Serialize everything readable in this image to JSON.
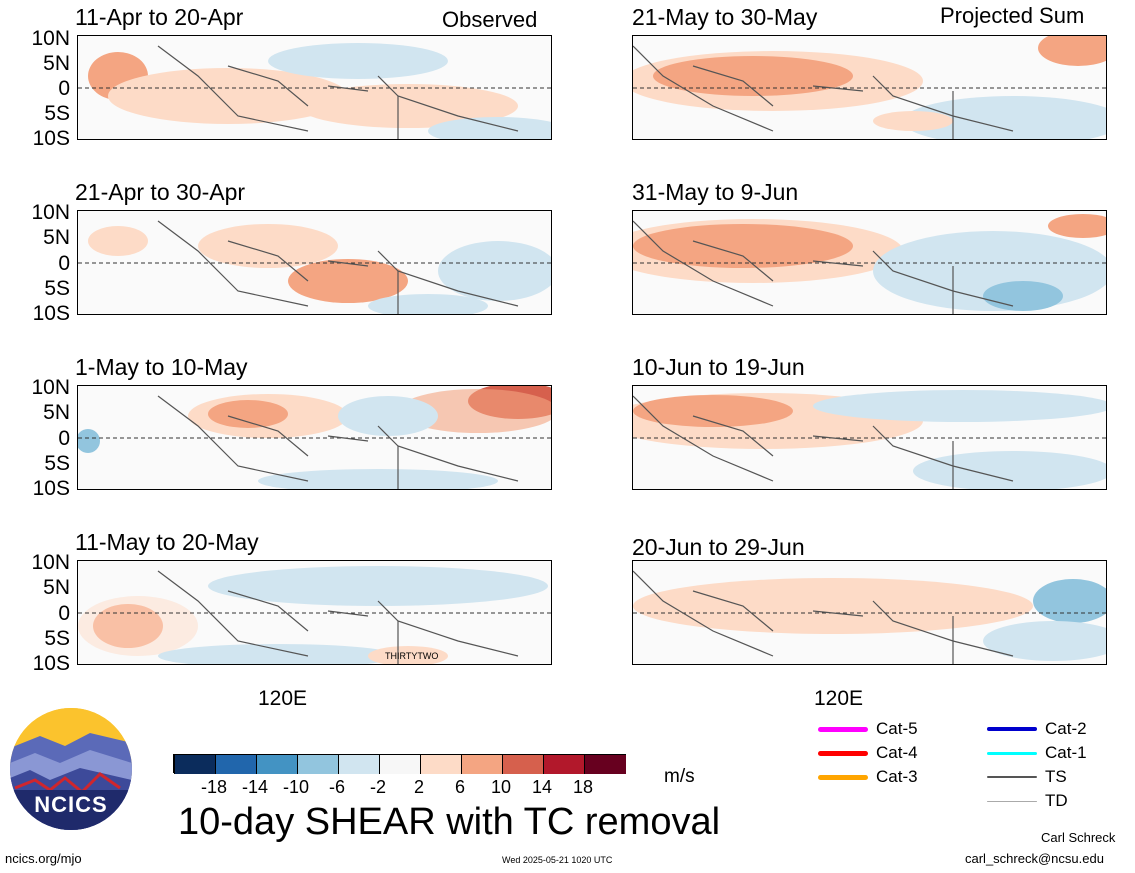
{
  "left_header": "Observed",
  "right_header": "Projected Sum",
  "lat_labels": [
    "10N",
    "5N",
    "0",
    "5S",
    "10S"
  ],
  "lon_label": "120E",
  "panels_left": [
    {
      "title": "11-Apr to 20-Apr"
    },
    {
      "title": "21-Apr to 30-Apr"
    },
    {
      "title": "1-May to 10-May"
    },
    {
      "title": "11-May to 20-May",
      "storm_label": "THIRTYTWO"
    }
  ],
  "panels_right": [
    {
      "title": "21-May to 30-May"
    },
    {
      "title": "31-May to 9-Jun"
    },
    {
      "title": "10-Jun to 19-Jun"
    },
    {
      "title": "20-Jun to 29-Jun"
    }
  ],
  "colorbar": {
    "ticks": [
      "-18",
      "-14",
      "-10",
      "-6",
      "-2",
      "2",
      "6",
      "10",
      "14",
      "18"
    ],
    "colors": [
      "#0b2c5c",
      "#2166ac",
      "#4393c3",
      "#92c5de",
      "#d1e5f0",
      "#f7f7f7",
      "#fddbc7",
      "#f4a582",
      "#d6604d",
      "#b2182b",
      "#67001f"
    ],
    "units": "m/s"
  },
  "main_title": "10-day SHEAR with TC removal",
  "legend": [
    {
      "label": "Cat-5",
      "color": "#ff00ff"
    },
    {
      "label": "Cat-4",
      "color": "#ff0000"
    },
    {
      "label": "Cat-3",
      "color": "#ffa500"
    },
    {
      "label": "Cat-2",
      "color": "#0000cd"
    },
    {
      "label": "Cat-1",
      "color": "#00ffff"
    },
    {
      "label": "TS",
      "color": "#555555"
    },
    {
      "label": "TD",
      "color": "#aaaaaa"
    }
  ],
  "logo_text": "NCICS",
  "footer": {
    "url": "ncics.org/mjo",
    "timestamp": "Wed 2025-05-21 1020 UTC",
    "author": "Carl Schreck",
    "email": "carl_schreck@ncsu.edu"
  }
}
